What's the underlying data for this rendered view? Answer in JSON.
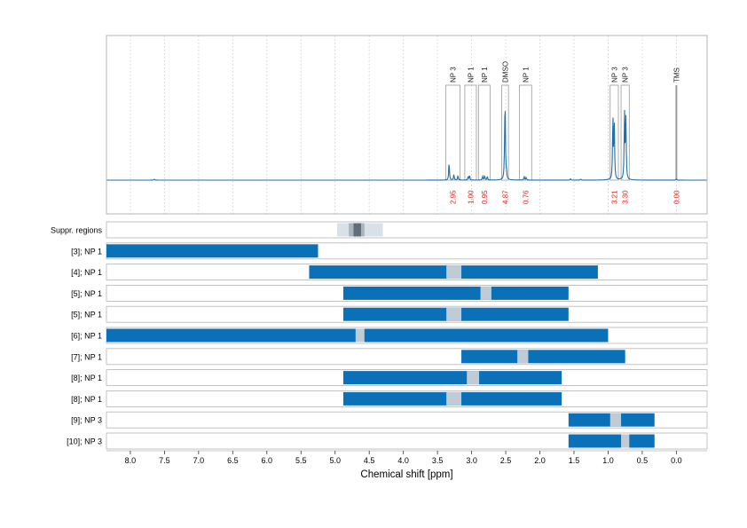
{
  "chart_data": {
    "type": "nmr_spectrum_with_range_bars",
    "xlabel": "Chemical shift [ppm]",
    "x_reversed": true,
    "xlim": [
      8.35,
      -0.45
    ],
    "x_ticks": [
      "8.0",
      "7.5",
      "7.0",
      "6.5",
      "6.0",
      "5.5",
      "5.0",
      "4.5",
      "4.0",
      "3.5",
      "3.0",
      "2.5",
      "2.0",
      "1.5",
      "1.0",
      "0.5",
      "0.0"
    ],
    "grid": true,
    "spectrum": {
      "baseline": 0.0,
      "peaks": [
        {
          "ppm": 7.65,
          "height": 0.01
        },
        {
          "ppm": 3.33,
          "height": 0.2
        },
        {
          "ppm": 3.26,
          "height": 0.06
        },
        {
          "ppm": 3.2,
          "height": 0.05
        },
        {
          "ppm": 3.05,
          "height": 0.04
        },
        {
          "ppm": 3.03,
          "height": 0.05
        },
        {
          "ppm": 2.84,
          "height": 0.04
        },
        {
          "ppm": 2.81,
          "height": 0.05
        },
        {
          "ppm": 2.77,
          "height": 0.04
        },
        {
          "ppm": 2.52,
          "height": 0.07
        },
        {
          "ppm": 2.51,
          "height": 0.9
        },
        {
          "ppm": 2.49,
          "height": 0.07
        },
        {
          "ppm": 2.23,
          "height": 0.04
        },
        {
          "ppm": 2.2,
          "height": 0.03
        },
        {
          "ppm": 1.55,
          "height": 0.015
        },
        {
          "ppm": 1.4,
          "height": 0.01
        },
        {
          "ppm": 0.93,
          "height": 0.7
        },
        {
          "ppm": 0.91,
          "height": 0.62
        },
        {
          "ppm": 0.76,
          "height": 0.73
        },
        {
          "ppm": 0.74,
          "height": 0.66
        },
        {
          "ppm": 0.0,
          "height": 0.01
        }
      ]
    },
    "peak_regions": [
      {
        "label": "NP 3",
        "ppm_from": 3.38,
        "ppm_to": 3.17,
        "value": "2.95",
        "peak_height": 0.2
      },
      {
        "label": "NP 1",
        "ppm_from": 3.1,
        "ppm_to": 2.93,
        "value": "1.00",
        "peak_height": 0.05
      },
      {
        "label": "NP 1",
        "ppm_from": 2.9,
        "ppm_to": 2.73,
        "value": "0.95",
        "peak_height": 0.05
      },
      {
        "label": "DMSO",
        "ppm_from": 2.56,
        "ppm_to": 2.46,
        "value": "4.87",
        "peak_height": 0.9
      },
      {
        "label": "NP 1",
        "ppm_from": 2.3,
        "ppm_to": 2.12,
        "value": "0.76",
        "peak_height": 0.04
      },
      {
        "label": "NP 3",
        "ppm_from": 0.97,
        "ppm_to": 0.85,
        "value": "3.21",
        "peak_height": 0.7
      },
      {
        "label": "NP 3",
        "ppm_from": 0.81,
        "ppm_to": 0.69,
        "value": "3.30",
        "peak_height": 0.73
      },
      {
        "label": "TMS",
        "ppm_from": 0.02,
        "ppm_to": -0.02,
        "value": "0.00",
        "peak_height": 0.9
      }
    ],
    "suppression_row": {
      "label": "Suppr. regions",
      "light": [
        4.97,
        4.3
      ],
      "mid": [
        4.8,
        4.57
      ],
      "dark": [
        4.73,
        4.62
      ]
    },
    "range_rows": [
      {
        "label": "[3]; NP 1",
        "ranges": [
          [
            8.35,
            5.25
          ]
        ],
        "gaps": []
      },
      {
        "label": "[4]; NP 1",
        "ranges": [
          [
            5.38,
            1.15
          ]
        ],
        "gaps": [
          [
            3.37,
            3.15
          ]
        ]
      },
      {
        "label": "[5]; NP 1",
        "ranges": [
          [
            4.88,
            1.58
          ]
        ],
        "gaps": [
          [
            2.87,
            2.71
          ]
        ]
      },
      {
        "label": "[5]; NP 1",
        "ranges": [
          [
            4.88,
            1.58
          ]
        ],
        "gaps": [
          [
            3.37,
            3.15
          ]
        ]
      },
      {
        "label": "[6]; NP 1",
        "ranges": [
          [
            8.35,
            1.0
          ]
        ],
        "gaps": [
          [
            4.7,
            4.57
          ]
        ]
      },
      {
        "label": "[7]; NP 1",
        "ranges": [
          [
            3.15,
            0.75
          ]
        ],
        "gaps": [
          [
            2.33,
            2.17
          ]
        ]
      },
      {
        "label": "[8]; NP 1",
        "ranges": [
          [
            4.88,
            1.68
          ]
        ],
        "gaps": [
          [
            3.07,
            2.89
          ]
        ]
      },
      {
        "label": "[8]; NP 1",
        "ranges": [
          [
            4.88,
            1.68
          ]
        ],
        "gaps": [
          [
            3.37,
            3.15
          ]
        ]
      },
      {
        "label": "[9]; NP 3",
        "ranges": [
          [
            1.58,
            0.32
          ]
        ],
        "gaps": [
          [
            0.97,
            0.81
          ]
        ]
      },
      {
        "label": "[10]; NP 3",
        "ranges": [
          [
            1.58,
            0.32
          ]
        ],
        "gaps": [
          [
            0.81,
            0.69
          ]
        ]
      }
    ],
    "colors": {
      "spectrum": "#1f6fa8",
      "bar": "#0a70b8",
      "gap": "#bfccd6",
      "supp_light": "#d8e0e8",
      "supp_mid": "#a8b4bf",
      "supp_dark": "#5f6e7a",
      "tms_line": "#9a9a9a",
      "region_value": "#e02020",
      "panel_border": "#b4b4b4",
      "grid": "#c8c8c8"
    }
  }
}
